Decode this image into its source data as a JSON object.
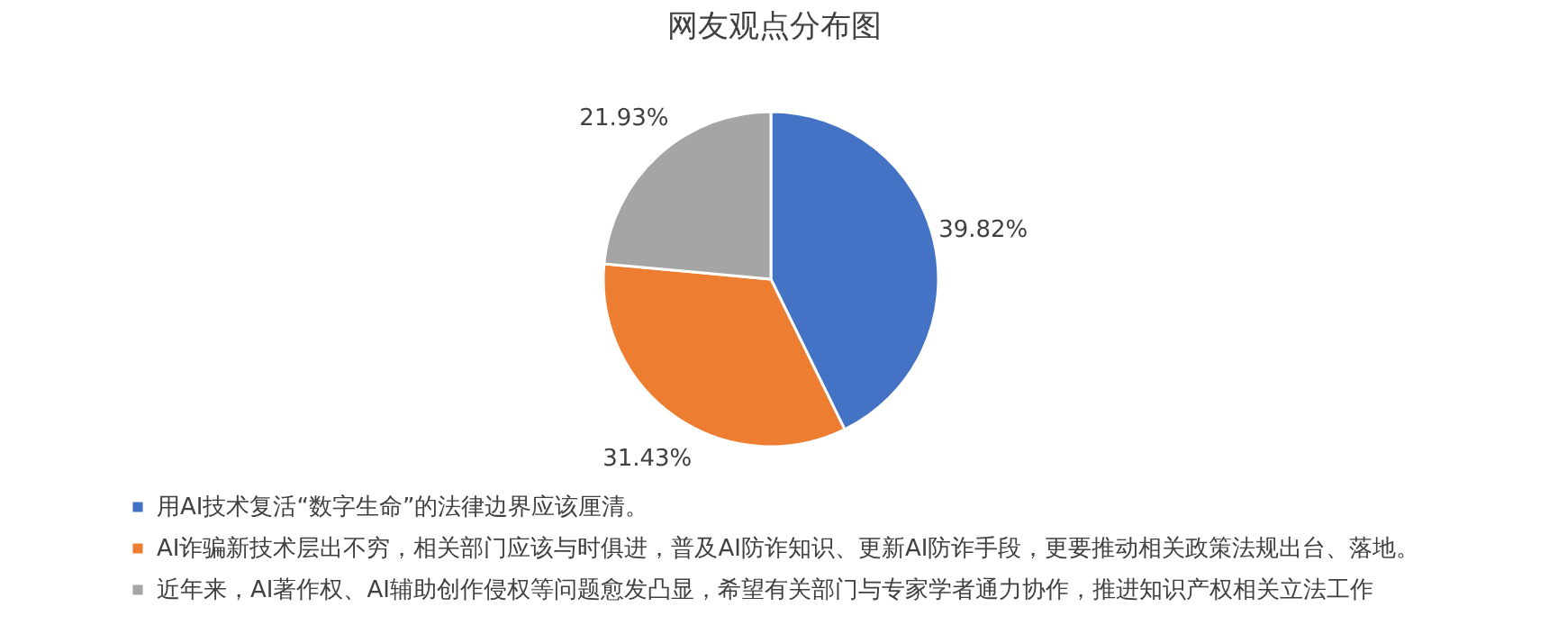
{
  "chart_data": {
    "type": "pie",
    "title": "网友观点分布图",
    "categories": [
      "用AI技术复活“数字生命”的法律边界应该厘清。",
      "AI诈骗新技术层出不穷，相关部门应该与时俱进，普及AI防诈知识、更新AI防诈手段，更要推动相关政策法规出台、落地。",
      "近年来，AI著作权、AI辅助创作侵权等问题愈发凸显，希望有关部门与专家学者通力协作，推进知识产权相关立法工作"
    ],
    "values": [
      39.82,
      31.43,
      21.93
    ],
    "colors": [
      "#4472c4",
      "#ed7d31",
      "#a5a5a5"
    ],
    "value_labels": [
      "39.82%",
      "31.43%",
      "21.93%"
    ],
    "legend": "bottom"
  }
}
